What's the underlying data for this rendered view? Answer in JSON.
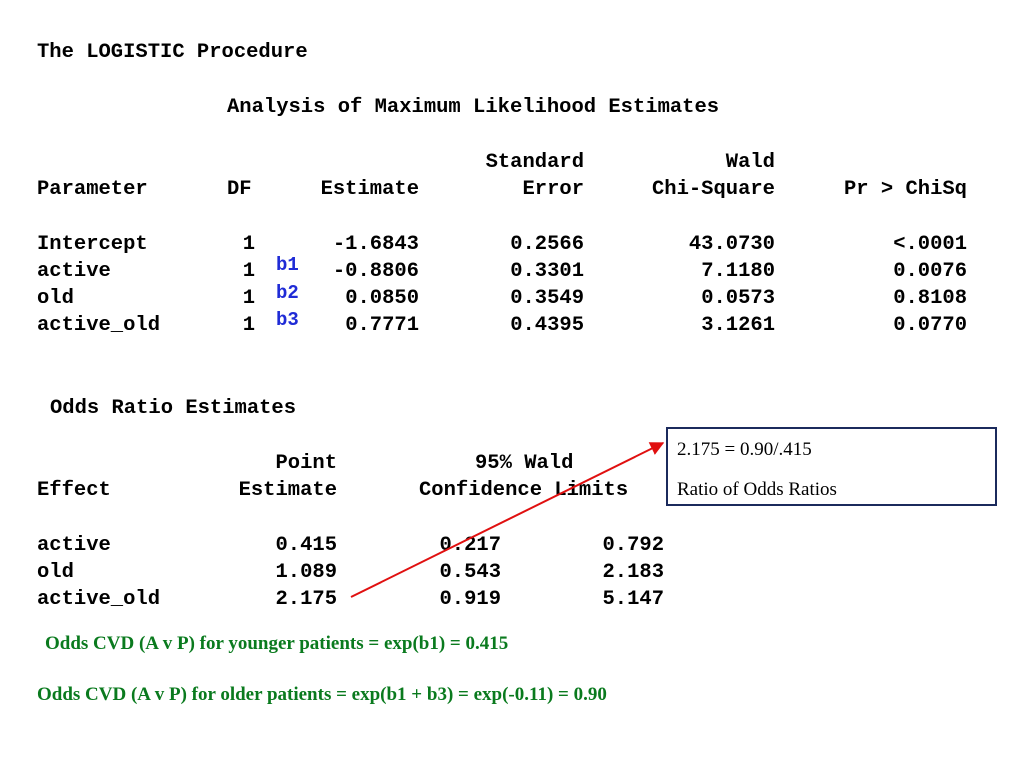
{
  "procedure_title": "The LOGISTIC Procedure",
  "mle": {
    "title": "Analysis of Maximum Likelihood Estimates",
    "headers": {
      "parameter": "Parameter",
      "df": "DF",
      "estimate": "Estimate",
      "se_top": "Standard",
      "se_bottom": "Error",
      "wald_top": "Wald",
      "wald_bottom": "Chi-Square",
      "p": "Pr > ChiSq"
    },
    "rows": [
      {
        "parameter": "Intercept",
        "df": "1",
        "estimate": "-1.6843",
        "se": "0.2566",
        "chisq": "43.0730",
        "p": "<.0001",
        "tag": ""
      },
      {
        "parameter": "active",
        "df": "1",
        "estimate": "-0.8806",
        "se": "0.3301",
        "chisq": "7.1180",
        "p": "0.0076",
        "tag": "b1"
      },
      {
        "parameter": "old",
        "df": "1",
        "estimate": "0.0850",
        "se": "0.3549",
        "chisq": "0.0573",
        "p": "0.8108",
        "tag": "b2"
      },
      {
        "parameter": "active_old",
        "df": "1",
        "estimate": "0.7771",
        "se": "0.4395",
        "chisq": "3.1261",
        "p": "0.0770",
        "tag": "b3"
      }
    ]
  },
  "odds": {
    "title": "Odds Ratio Estimates",
    "headers": {
      "effect": "Effect",
      "point_top": "Point",
      "point_bottom": "Estimate",
      "ci_top": "95% Wald",
      "ci_bottom": "Confidence Limits"
    },
    "rows": [
      {
        "effect": "active",
        "point": "0.415",
        "lower": "0.217",
        "upper": "0.792"
      },
      {
        "effect": "old",
        "point": "1.089",
        "lower": "0.543",
        "upper": "2.183"
      },
      {
        "effect": "active_old",
        "point": "2.175",
        "lower": "0.919",
        "upper": "5.147"
      }
    ]
  },
  "note_box": {
    "line1": "2.175 = 0.90/.415",
    "line2": "Ratio of Odds Ratios"
  },
  "footer": {
    "younger": "Odds CVD (A v P) for younger patients = exp(b1) = 0.415",
    "older": "Odds CVD (A v P) for older patients = exp(b1 + b3) = exp(-0.11) = 0.90"
  },
  "colors": {
    "tag_blue": "#1f2bd6",
    "footer_green": "#0a7a1e",
    "arrow_red": "#e01010",
    "box_border": "#1b2a5c"
  }
}
